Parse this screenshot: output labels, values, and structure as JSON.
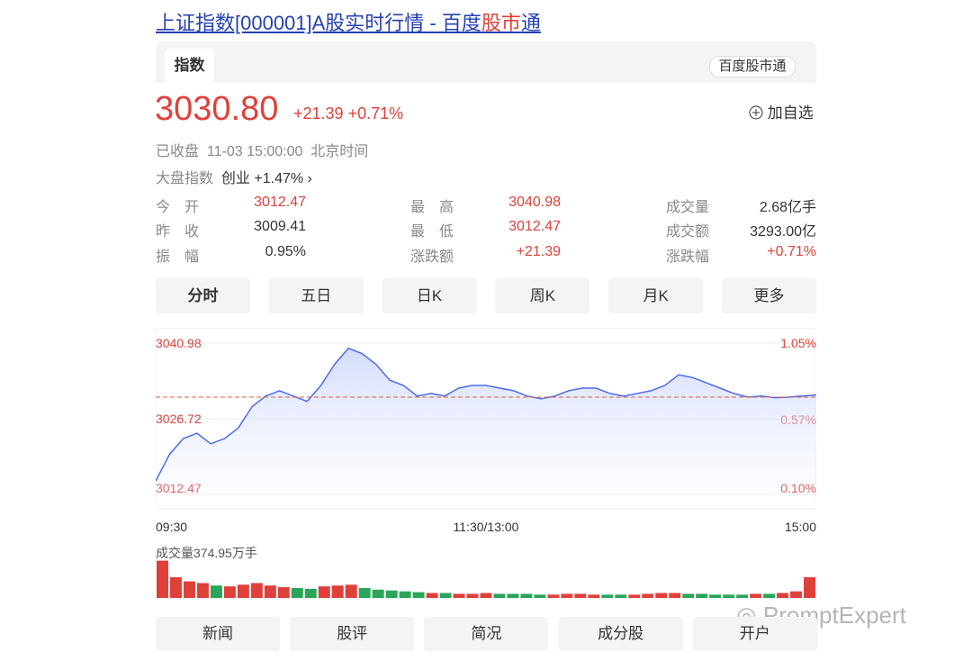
{
  "header": {
    "title_a": "上证指数[000001]A股实时行情 - 百度",
    "title_b": "股市",
    "title_c": "通"
  },
  "tabs": {
    "active": "指数",
    "brand": "百度股市通"
  },
  "quote": {
    "price": "3030.80",
    "change": "+21.39",
    "pct": "+0.71%",
    "add": "加自选",
    "status": "已收盘",
    "time": "11-03 15:00:00",
    "zone": "北京时间",
    "market_label": "大盘指数",
    "market_name": "创业",
    "market_pct": "+1.47%"
  },
  "stats": [
    [
      [
        "今　开",
        "3012.47"
      ],
      [
        "最　高",
        "3040.98"
      ],
      [
        "成交量",
        "2.68亿手"
      ]
    ],
    [
      [
        "昨　收",
        "3009.41"
      ],
      [
        "最　低",
        "3012.47"
      ],
      [
        "成交额",
        "3293.00亿"
      ]
    ],
    [
      [
        "振　幅",
        "0.95%"
      ],
      [
        "涨跌额",
        "+21.39"
      ],
      [
        "涨跌幅",
        "+0.71%"
      ]
    ]
  ],
  "periods": [
    "分时",
    "五日",
    "日K",
    "周K",
    "月K",
    "更多"
  ],
  "chart_data": {
    "type": "line",
    "color": "#4a6cf0",
    "values": [
      3015,
      3020,
      3023,
      3024,
      3022,
      3023,
      3025,
      3029,
      3031,
      3032,
      3031,
      3030,
      3033,
      3037,
      3040,
      3039,
      3037,
      3034,
      3033,
      3031,
      3031.5,
      3031,
      3032.5,
      3033,
      3033,
      3032.5,
      3032,
      3031,
      3030.5,
      3031,
      3032,
      3032.5,
      3032.5,
      3031.5,
      3031,
      3031.5,
      3032,
      3033,
      3035,
      3034.5,
      3033.5,
      3032.5,
      3031.5,
      3030.8,
      3031,
      3030.7,
      3030.8,
      3031,
      3031.2
    ],
    "xlim": [
      0,
      48
    ],
    "xticks": [
      {
        "value": 0,
        "label": "09:30"
      },
      {
        "value": 24,
        "label": "11:30/13:00"
      },
      {
        "value": 48,
        "label": "15:00"
      }
    ],
    "ylim": [
      3012.47,
      3040.98
    ],
    "yticks": [
      3040.98,
      3026.72,
      3012.47
    ],
    "y2lim": [
      0.1,
      1.05
    ],
    "y2ticks": [
      {
        "value": 1.05,
        "label": "1.05%"
      },
      {
        "value": 0.57,
        "label": "0.57%"
      },
      {
        "value": 0.1,
        "label": "0.10%"
      }
    ],
    "reference_line": 3030.8,
    "volume_label": "成交量374.95万手",
    "volume": [
      45,
      25,
      20,
      18,
      15,
      14,
      16,
      18,
      15,
      13,
      12,
      11,
      14,
      15,
      16,
      12,
      10,
      9,
      8,
      7,
      6,
      6,
      5,
      5,
      6,
      5,
      5,
      5,
      4,
      4,
      5,
      5,
      4,
      4,
      4,
      4,
      5,
      6,
      6,
      5,
      5,
      4,
      4,
      4,
      5,
      5,
      6,
      8,
      25
    ],
    "volume_ylim": [
      0,
      50
    ]
  },
  "bottom": [
    "新闻",
    "股评",
    "简况",
    "成分股",
    "开户"
  ],
  "watermark": "PromptExpert"
}
